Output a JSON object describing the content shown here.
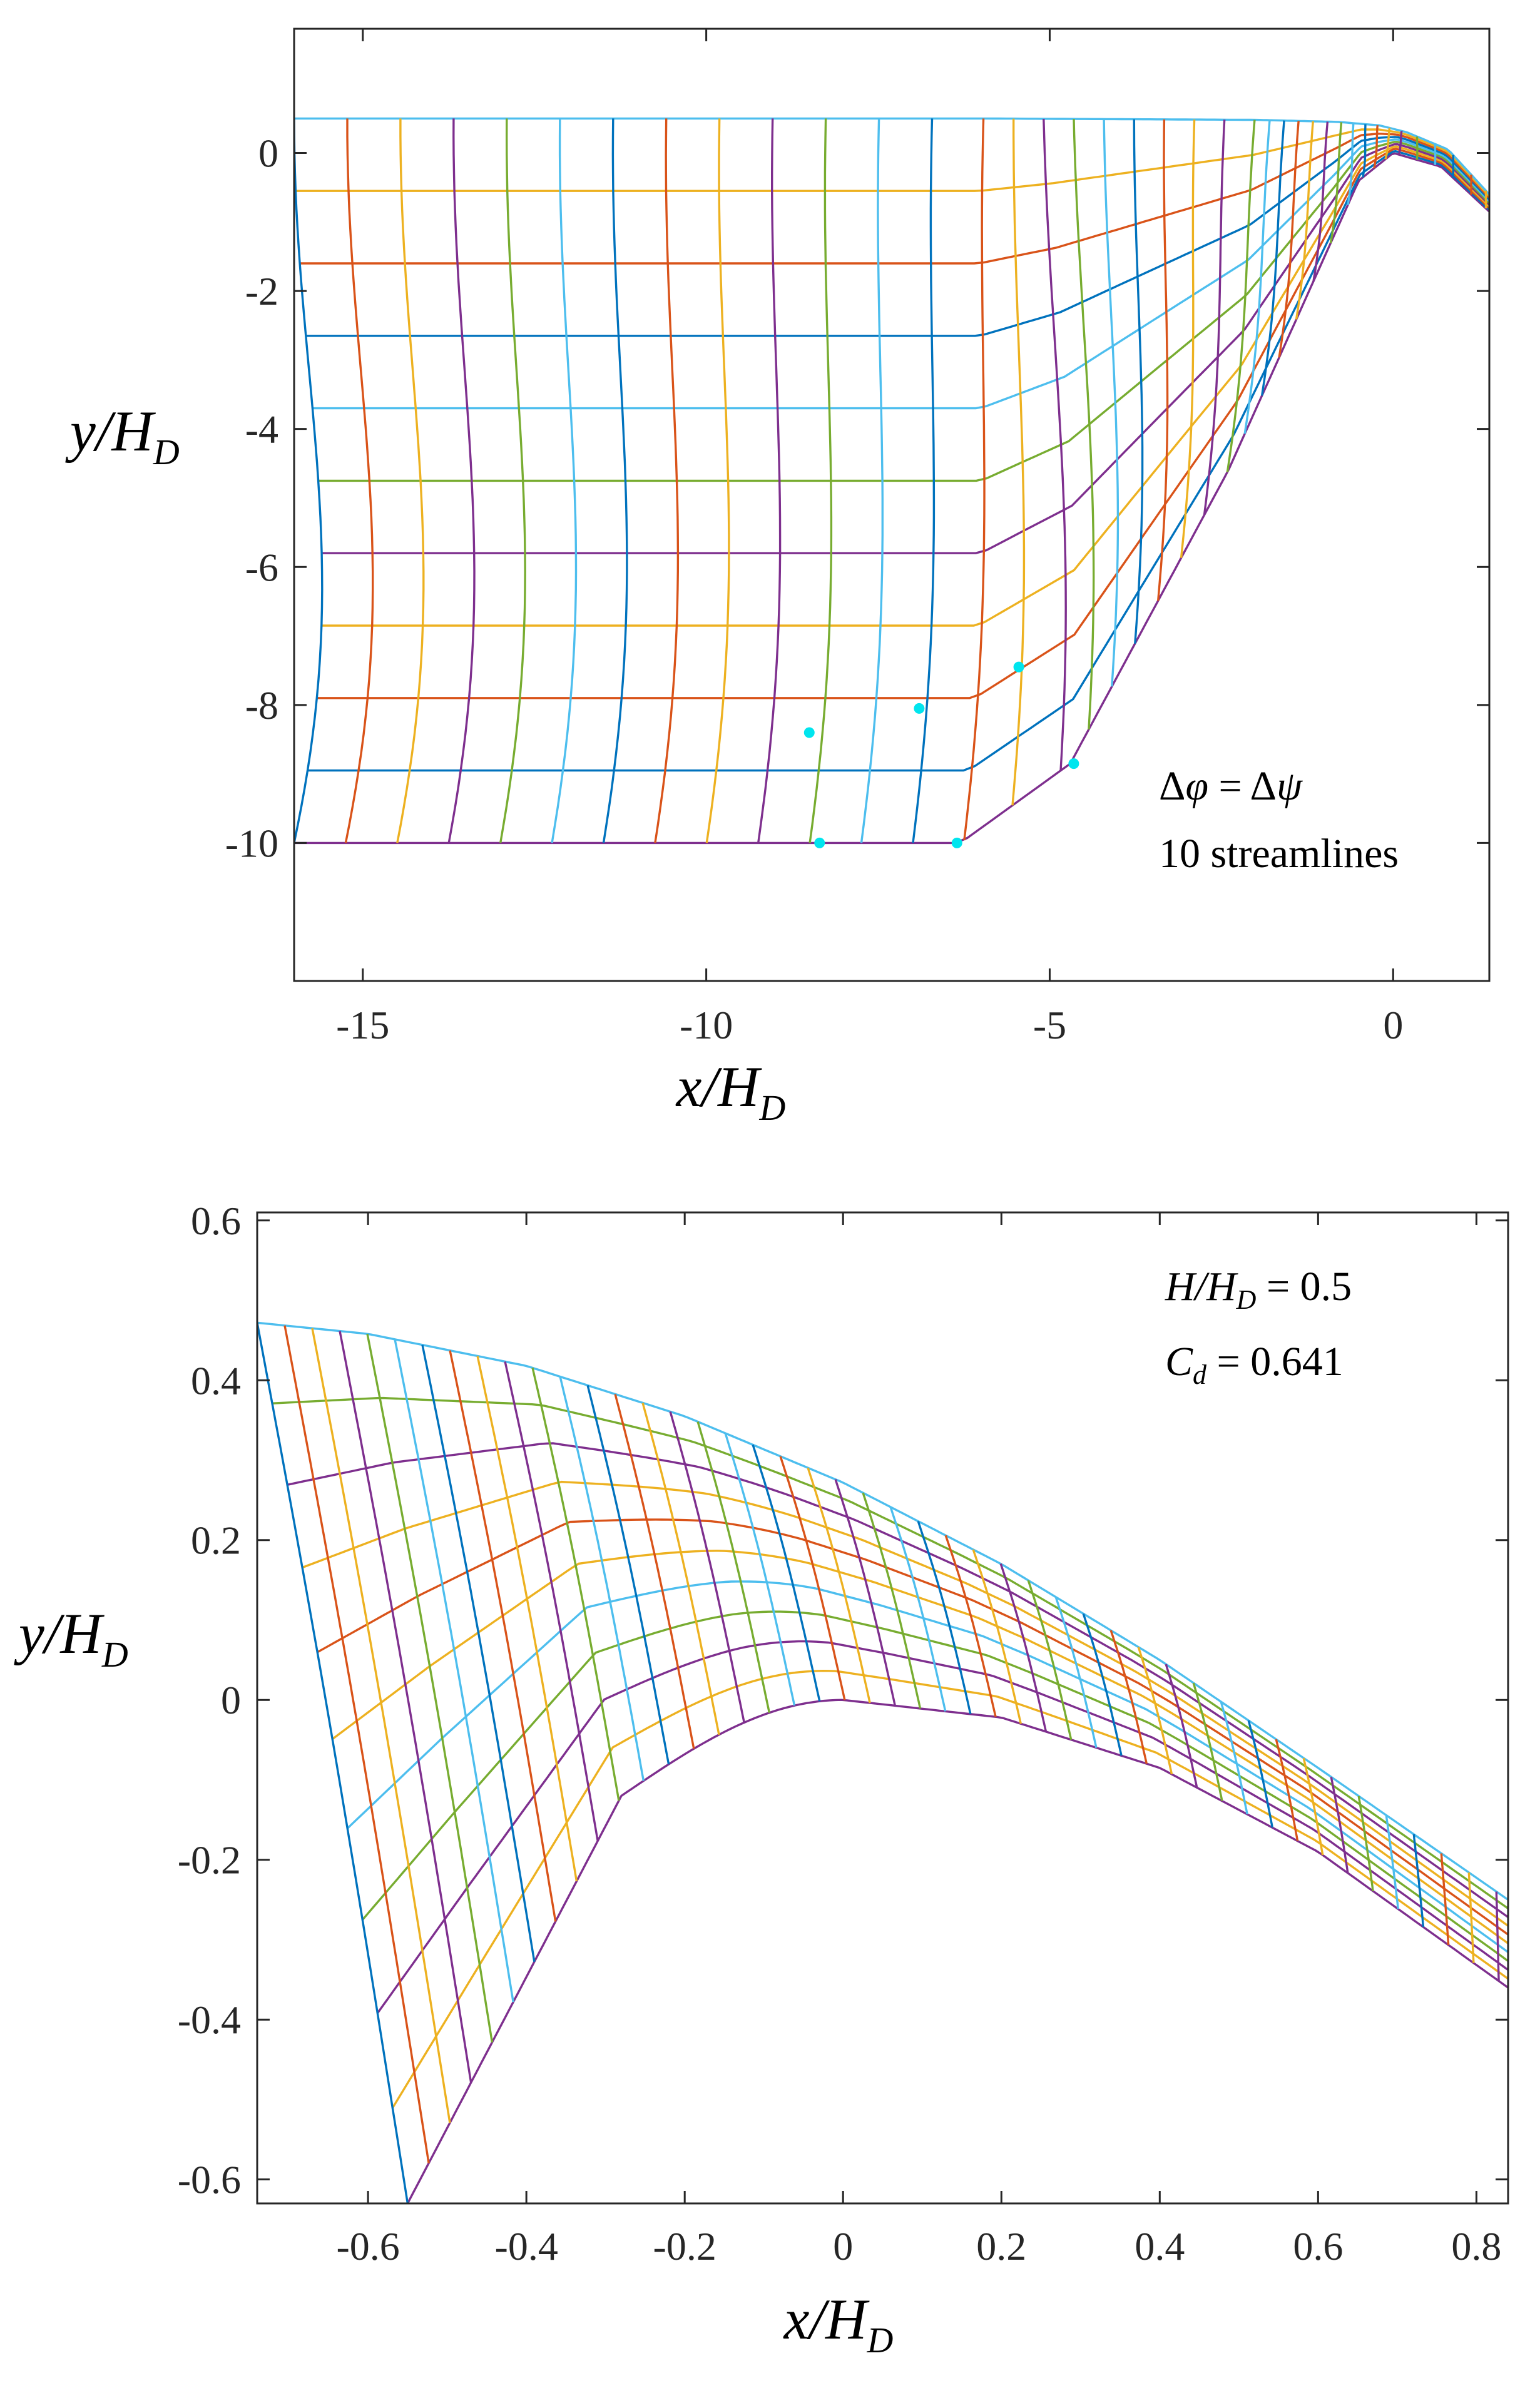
{
  "palette": [
    "#0072bd",
    "#d95319",
    "#edb120",
    "#7e2f8e",
    "#77ac30",
    "#4dbeee",
    "#a2142f"
  ],
  "chart_data": [
    {
      "type": "line",
      "title": "",
      "description_series": "flow net: streamlines (psi = const) and equipotential lines (phi = const)",
      "xlabel": "x/H_D",
      "ylabel": "y/H_D",
      "xlabel_main": "x/H",
      "xlabel_sub": "D",
      "ylabel_main": "y/H",
      "ylabel_sub": "D",
      "xlim": [
        -16.0,
        1.4
      ],
      "ylim": [
        -12.0,
        1.8
      ],
      "xticks": [
        -15,
        -10,
        -5,
        0
      ],
      "yticks": [
        0,
        -2,
        -4,
        -6,
        -8,
        -10
      ],
      "streamline_count": 10,
      "crest_x": 0.0,
      "crest_y": 0.0,
      "weir_upstream_corner": [
        -4.7,
        -8.85
      ],
      "inlet_corner": [
        -6.3,
        -10.0
      ],
      "boundary_y_bottom": -10.0,
      "free_surface_y": 0.5,
      "inlet_x": -16.0,
      "annotations": [
        {
          "text_main": "Δφ = Δψ",
          "text_phi": "φ",
          "text_psi": "ψ"
        },
        {
          "text": "10 streamlines"
        }
      ],
      "markers": [
        {
          "x": -8.35,
          "y": -10.0
        },
        {
          "x": -6.35,
          "y": -10.0
        },
        {
          "x": -4.65,
          "y": -8.85
        },
        {
          "x": -8.5,
          "y": -8.4
        },
        {
          "x": -6.9,
          "y": -8.05
        },
        {
          "x": -5.45,
          "y": -7.45
        }
      ],
      "marker_color": "#00e5ee"
    },
    {
      "type": "line",
      "title": "",
      "xlabel": "x/H_D",
      "ylabel": "y/H_D",
      "xlabel_main": "x/H",
      "xlabel_sub": "D",
      "ylabel_main": "y/H",
      "ylabel_sub": "D",
      "xlim": [
        -0.74,
        0.84
      ],
      "ylim": [
        -0.63,
        0.61
      ],
      "xticks": [
        -0.6,
        -0.4,
        -0.2,
        0,
        0.2,
        0.4,
        0.6,
        0.8
      ],
      "xtick_labels": [
        "-0.6",
        "-0.4",
        "-0.2",
        "0",
        "0.2",
        "0.4",
        "0.6",
        "0.8"
      ],
      "yticks": [
        0.6,
        0.4,
        0.2,
        0,
        -0.2,
        -0.4,
        -0.6
      ],
      "ytick_labels": [
        "0.6",
        "0.4",
        "0.2",
        "0",
        "-0.2",
        "-0.4",
        "-0.6"
      ],
      "H_over_HD": 0.5,
      "Cd": 0.641,
      "annotations": [
        {
          "lhs_main": "H/H",
          "lhs_sub": "D",
          "rhs": " = 0.5"
        },
        {
          "lhs_main": "C",
          "lhs_sub": "d",
          "rhs": " = 0.641"
        }
      ],
      "free_surface": {
        "x": [
          -0.74,
          -0.6,
          -0.4,
          -0.2,
          0,
          0.2,
          0.4,
          0.6,
          0.84
        ],
        "y": [
          0.472,
          0.458,
          0.418,
          0.355,
          0.272,
          0.17,
          0.05,
          -0.085,
          -0.25
        ]
      },
      "weir_profile": {
        "x": [
          -0.55,
          -0.28,
          -0.2,
          -0.1,
          0,
          0.2,
          0.4,
          0.6,
          0.84
        ],
        "y": [
          -0.63,
          -0.12,
          -0.05,
          -0.012,
          0,
          -0.022,
          -0.085,
          -0.19,
          -0.36
        ]
      }
    }
  ]
}
